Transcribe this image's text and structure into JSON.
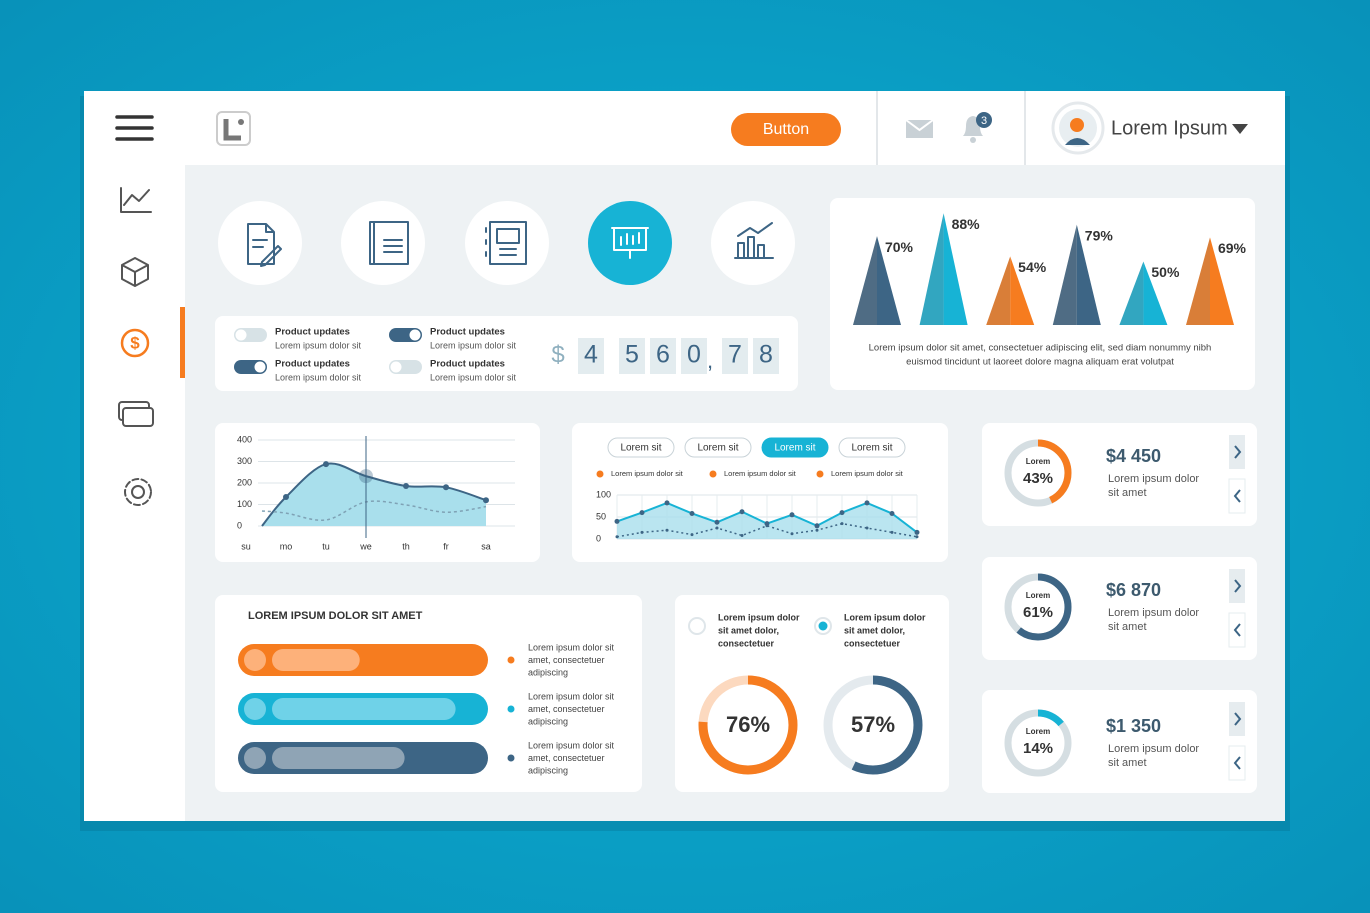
{
  "header": {
    "button": "Button",
    "badge": "3",
    "user": "Lorem Ipsum"
  },
  "toggles": [
    {
      "title": "Product updates",
      "text": "Lorem ipsum dolor sit",
      "on": false
    },
    {
      "title": "Product updates",
      "text": "Lorem ipsum dolor sit",
      "on": true
    },
    {
      "title": "Product updates",
      "text": "Lorem ipsum dolor sit",
      "on": true
    },
    {
      "title": "Product updates",
      "text": "Lorem ipsum dolor sit",
      "on": false
    }
  ],
  "counter": {
    "currency": "$",
    "digits": [
      "4",
      "5",
      "6",
      "0",
      ",",
      "7",
      "8"
    ]
  },
  "chart_data": [
    {
      "type": "pyramid",
      "values": [
        70,
        88,
        54,
        79,
        50,
        69
      ],
      "value_labels": [
        "70%",
        "88%",
        "54%",
        "79%",
        "50%",
        "69%"
      ],
      "colors": [
        "#3d6585",
        "#17b3d5",
        "#f67c1f",
        "#3d6585",
        "#17b3d5",
        "#f67c1f"
      ],
      "ylim": [
        0,
        100
      ],
      "caption": [
        "Lorem ipsum dolor sit amet, consectetuer adipiscing elit, sed diam nonummy nibh",
        "euismod tincidunt ut laoreet dolore magna aliquam erat volutpat"
      ]
    },
    {
      "type": "area",
      "categories": [
        "su",
        "mo",
        "tu",
        "we",
        "th",
        "fr",
        "sa"
      ],
      "series": [
        {
          "color": "#3d6585",
          "values": [
            0,
            135,
            288,
            232,
            186,
            180,
            120
          ]
        },
        {
          "color": "#7fa2b5",
          "values": [
            70,
            60,
            28,
            112,
            98,
            64,
            90
          ]
        }
      ],
      "ylim": [
        0,
        400
      ],
      "yticks": [
        0,
        100,
        200,
        300,
        400
      ],
      "grid": true,
      "highlight": 3
    },
    {
      "type": "line",
      "tabs": [
        "Lorem sit",
        "Lorem sit",
        "Lorem sit",
        "Lorem sit"
      ],
      "active_tab": 2,
      "legend": [
        "Lorem ipsum dolor sit",
        "Lorem ipsum dolor sit",
        "Lorem ipsum dolor sit"
      ],
      "legend_color": "#f67c1f",
      "series": [
        {
          "color": "#17b3d5",
          "values": [
            40,
            60,
            82,
            58,
            38,
            62,
            35,
            55,
            30,
            60,
            82,
            58,
            15
          ]
        },
        {
          "color": "#3d6585",
          "values": [
            5,
            15,
            20,
            10,
            25,
            8,
            30,
            12,
            20,
            35,
            25,
            15,
            5
          ]
        }
      ],
      "ylim": [
        0,
        100
      ],
      "yticks": [
        0,
        50,
        100
      ],
      "grid": true
    }
  ],
  "progress": {
    "title": "LOREM IPSUM DOLOR SIT AMET",
    "max": 100,
    "bars": [
      {
        "value": 43,
        "color": "#f67c1f",
        "light": "#fdb17a",
        "text": [
          "Lorem ipsum dolor sit",
          "amet, consectetuer",
          "adipiscing"
        ]
      },
      {
        "value": 90,
        "color": "#17b3d5",
        "light": "#6fd2e8",
        "text": [
          "Lorem ipsum dolor sit",
          "amet, consectetuer",
          "adipiscing"
        ]
      },
      {
        "value": 65,
        "color": "#3d6585",
        "light": "#8fa4b5",
        "text": [
          "Lorem ipsum dolor sit",
          "amet, consectetuer",
          "adipiscing"
        ]
      }
    ]
  },
  "donuts": {
    "options": [
      {
        "text": [
          "Lorem ipsum dolor",
          "sit amet dolor,",
          "consectetuer"
        ],
        "selected": false
      },
      {
        "text": [
          "Lorem ipsum dolor",
          "sit amet dolor,",
          "consectetuer"
        ],
        "selected": true
      }
    ],
    "rings": [
      {
        "value": 76,
        "value_label": "76%",
        "color": "#f67c1f",
        "track": "#fcd9bf"
      },
      {
        "value": 57,
        "value_label": "57%",
        "color": "#3d6585",
        "track": "#e4eaee"
      }
    ]
  },
  "stats": [
    {
      "label": "Lorem",
      "value": 43,
      "value_label": "43%",
      "amount": "$4 450",
      "text": [
        "Lorem ipsum dolor",
        "sit amet"
      ],
      "color": "#f67c1f"
    },
    {
      "label": "Lorem",
      "value": 61,
      "value_label": "61%",
      "amount": "$6 870",
      "text": [
        "Lorem ipsum dolor",
        "sit amet"
      ],
      "color": "#3d6585"
    },
    {
      "label": "Lorem",
      "value": 14,
      "value_label": "14%",
      "amount": "$1 350",
      "text": [
        "Lorem ipsum dolor",
        "sit amet"
      ],
      "color": "#17b3d5"
    }
  ]
}
